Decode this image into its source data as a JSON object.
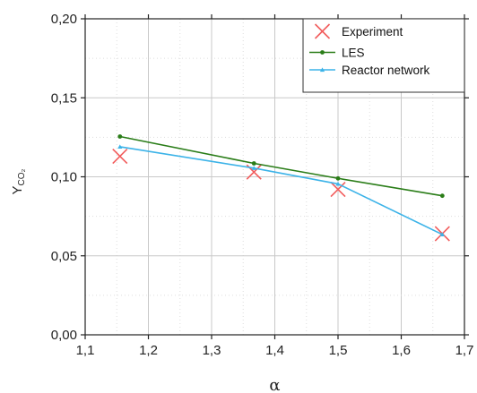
{
  "chart_data": {
    "type": "line",
    "xlabel": "α",
    "ylabel": "Y",
    "ylabel_sub": "CO₂",
    "xlim": [
      1.1,
      1.7
    ],
    "ylim": [
      0.0,
      0.2
    ],
    "x_ticks": [
      1.1,
      1.2,
      1.3,
      1.4,
      1.5,
      1.6,
      1.7
    ],
    "x_tick_labels": [
      "1,1",
      "1,2",
      "1,3",
      "1,4",
      "1,5",
      "1,6",
      "1,7"
    ],
    "y_ticks": [
      0.0,
      0.05,
      0.1,
      0.15,
      0.2
    ],
    "y_tick_labels": [
      "0,00",
      "0,05",
      "0,10",
      "0,15",
      "0,20"
    ],
    "grid": true,
    "legend_position": "top-right",
    "series": [
      {
        "name": "Experiment",
        "style": "markers",
        "marker": "x",
        "color": "#f25c5c",
        "x": [
          1.155,
          1.367,
          1.5,
          1.665
        ],
        "y": [
          0.113,
          0.103,
          0.092,
          0.064
        ]
      },
      {
        "name": "LES",
        "style": "line",
        "marker": "dot",
        "color": "#2a7d18",
        "x": [
          1.155,
          1.367,
          1.5,
          1.665
        ],
        "y": [
          0.1255,
          0.1085,
          0.099,
          0.088
        ]
      },
      {
        "name": "Reactor network",
        "style": "line",
        "marker": "triangle",
        "color": "#3cb3e8",
        "x": [
          1.155,
          1.367,
          1.5,
          1.665
        ],
        "y": [
          0.119,
          0.1055,
          0.0955,
          0.0635
        ]
      }
    ]
  }
}
